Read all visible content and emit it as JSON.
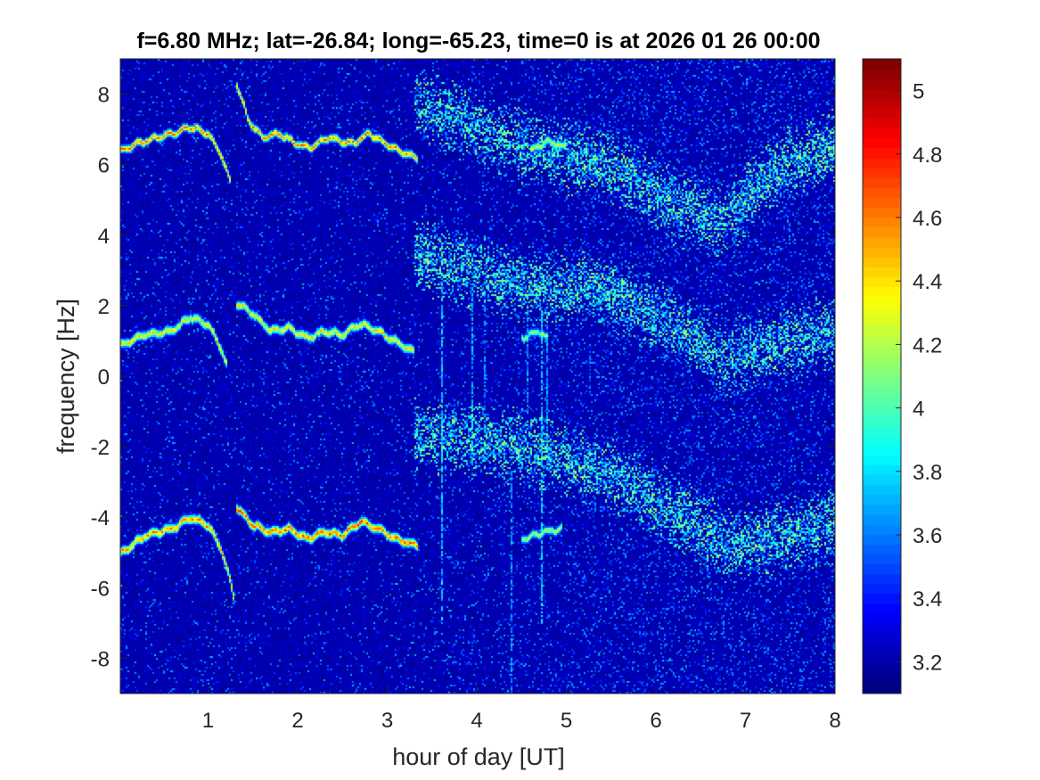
{
  "figure": {
    "title": "f=6.80 MHz;  lat=-26.84; long=-65.23, time=0 is at 2026 01 26 00:00"
  },
  "chart_data": {
    "type": "heatmap",
    "title": "f=6.80 MHz;  lat=-26.84; long=-65.23, time=0 is at 2026 01 26 00:00",
    "xlabel": "hour of day [UT]",
    "ylabel": "frequency [Hz]",
    "xlim": [
      0.02,
      8
    ],
    "ylim": [
      -9,
      9
    ],
    "xticks": [
      1,
      2,
      3,
      4,
      5,
      6,
      7,
      8
    ],
    "xtick_labels": [
      "1",
      "2",
      "3",
      "4",
      "5",
      "6",
      "7",
      "8"
    ],
    "yticks": [
      -8,
      -6,
      -4,
      -2,
      0,
      2,
      4,
      6,
      8
    ],
    "ytick_labels": [
      "-8",
      "-6",
      "-4",
      "-2",
      "0",
      "2",
      "4",
      "6",
      "8"
    ],
    "colormap": "jet",
    "colorbar": {
      "range": [
        3.1,
        5.1
      ],
      "ticks": [
        3.2,
        3.4,
        3.6,
        3.8,
        4,
        4.2,
        4.4,
        4.6,
        4.8,
        5
      ],
      "tick_labels": [
        "3.2",
        "3.4",
        "3.6",
        "3.8",
        "4",
        "4.2",
        "4.4",
        "4.6",
        "4.8",
        "5"
      ]
    },
    "background_level": 3.15,
    "traces": [
      {
        "points": [
          [
            0.02,
            6.4
          ],
          [
            0.3,
            6.7
          ],
          [
            0.6,
            6.9
          ],
          [
            0.8,
            7.1
          ],
          [
            1.0,
            6.9
          ],
          [
            1.15,
            6.3
          ],
          [
            1.25,
            5.5
          ]
        ],
        "level": 4.6,
        "spread": 0.1
      },
      {
        "points": [
          [
            1.32,
            8.3
          ],
          [
            1.45,
            7.3
          ],
          [
            1.6,
            6.8
          ],
          [
            1.8,
            6.9
          ],
          [
            2.0,
            6.6
          ],
          [
            2.15,
            6.5
          ],
          [
            2.35,
            6.8
          ],
          [
            2.6,
            6.6
          ],
          [
            2.8,
            6.9
          ],
          [
            3.0,
            6.6
          ],
          [
            3.15,
            6.4
          ],
          [
            3.35,
            6.2
          ]
        ],
        "level": 4.6,
        "spread": 0.1
      },
      {
        "points": [
          [
            4.6,
            6.4
          ],
          [
            4.8,
            6.7
          ],
          [
            5.0,
            6.5
          ]
        ],
        "level": 4.3,
        "spread": 0.1
      },
      {
        "points": [
          [
            0.02,
            0.9
          ],
          [
            0.3,
            1.2
          ],
          [
            0.6,
            1.3
          ],
          [
            0.8,
            1.7
          ],
          [
            1.0,
            1.5
          ],
          [
            1.15,
            0.8
          ],
          [
            1.25,
            0.0
          ],
          [
            1.22,
            -0.4
          ]
        ],
        "level": 4.4,
        "spread": 0.12
      },
      {
        "points": [
          [
            1.32,
            2.1
          ],
          [
            1.5,
            1.8
          ],
          [
            1.7,
            1.3
          ],
          [
            1.9,
            1.4
          ],
          [
            2.1,
            1.1
          ],
          [
            2.3,
            1.3
          ],
          [
            2.5,
            1.2
          ],
          [
            2.7,
            1.5
          ],
          [
            2.9,
            1.3
          ],
          [
            3.1,
            1.0
          ],
          [
            3.3,
            0.7
          ]
        ],
        "level": 4.4,
        "spread": 0.12
      },
      {
        "points": [
          [
            4.5,
            1.1
          ],
          [
            4.7,
            1.3
          ],
          [
            4.8,
            1.1
          ]
        ],
        "level": 4.2,
        "spread": 0.1
      },
      {
        "points": [
          [
            0.02,
            -5.0
          ],
          [
            0.3,
            -4.5
          ],
          [
            0.6,
            -4.3
          ],
          [
            0.8,
            -4.0
          ],
          [
            1.0,
            -4.2
          ],
          [
            1.15,
            -4.9
          ],
          [
            1.25,
            -5.8
          ],
          [
            1.3,
            -6.4
          ]
        ],
        "level": 4.6,
        "spread": 0.12
      },
      {
        "points": [
          [
            1.32,
            -3.7
          ],
          [
            1.5,
            -4.2
          ],
          [
            1.7,
            -4.4
          ],
          [
            1.9,
            -4.3
          ],
          [
            2.1,
            -4.6
          ],
          [
            2.3,
            -4.4
          ],
          [
            2.5,
            -4.5
          ],
          [
            2.7,
            -4.1
          ],
          [
            2.9,
            -4.3
          ],
          [
            3.1,
            -4.6
          ],
          [
            3.35,
            -4.8
          ]
        ],
        "level": 4.7,
        "spread": 0.12
      },
      {
        "points": [
          [
            4.5,
            -4.6
          ],
          [
            4.75,
            -4.4
          ],
          [
            4.95,
            -4.3
          ]
        ],
        "level": 4.3,
        "spread": 0.1
      }
    ],
    "diffuse_bands": [
      {
        "points": [
          [
            3.3,
            7.8
          ],
          [
            4.5,
            6.5
          ],
          [
            5.5,
            6.0
          ],
          [
            6.2,
            4.8
          ],
          [
            6.8,
            4.4
          ],
          [
            7.3,
            5.8
          ],
          [
            8.0,
            6.5
          ]
        ],
        "level": 3.5,
        "spread": 0.8
      },
      {
        "points": [
          [
            3.3,
            3.4
          ],
          [
            4.5,
            2.6
          ],
          [
            5.5,
            2.4
          ],
          [
            6.2,
            1.4
          ],
          [
            6.8,
            0.5
          ],
          [
            7.3,
            0.9
          ],
          [
            8.0,
            1.2
          ]
        ],
        "level": 3.5,
        "spread": 0.8
      },
      {
        "points": [
          [
            3.3,
            -1.6
          ],
          [
            4.5,
            -2.0
          ],
          [
            5.5,
            -2.8
          ],
          [
            6.2,
            -3.8
          ],
          [
            6.8,
            -4.8
          ],
          [
            7.3,
            -4.6
          ],
          [
            8.0,
            -4.2
          ]
        ],
        "level": 3.5,
        "spread": 0.8
      }
    ],
    "vertical_streaks": [
      {
        "x": 3.6,
        "y": [
          -7.0,
          2.8
        ],
        "level": 3.9
      },
      {
        "x": 3.95,
        "y": [
          -2.5,
          2.5
        ],
        "level": 3.9
      },
      {
        "x": 4.07,
        "y": [
          -1.5,
          2.5
        ],
        "level": 3.8
      },
      {
        "x": 4.38,
        "y": [
          -9.0,
          -2.5
        ],
        "level": 3.8
      },
      {
        "x": 4.55,
        "y": [
          -1.0,
          1.8
        ],
        "level": 3.8
      },
      {
        "x": 4.72,
        "y": [
          -7.0,
          1.8
        ],
        "level": 3.9
      },
      {
        "x": 4.78,
        "y": [
          -2.0,
          1.5
        ],
        "level": 3.8
      },
      {
        "x": 5.25,
        "y": [
          -0.5,
          0.8
        ],
        "level": 3.7
      },
      {
        "x": 7.0,
        "y": [
          8.2,
          8.5
        ],
        "level": 3.8
      }
    ]
  }
}
